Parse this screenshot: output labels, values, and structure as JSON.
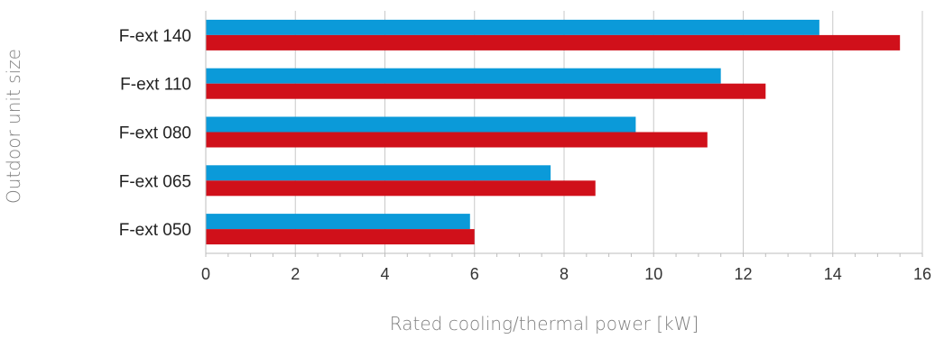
{
  "chart_data": {
    "type": "bar",
    "orientation": "horizontal",
    "categories": [
      "F-ext 140",
      "F-ext 110",
      "F-ext 080",
      "F-ext 065",
      "F-ext 050"
    ],
    "series": [
      {
        "values": [
          13.7,
          11.5,
          9.6,
          7.7,
          5.9
        ],
        "color": "#0b9ad9"
      },
      {
        "values": [
          15.5,
          12.5,
          11.2,
          8.7,
          6.0
        ],
        "color": "#d0101a"
      }
    ],
    "xlim": [
      0,
      16
    ],
    "xticks": [
      0,
      2,
      4,
      6,
      8,
      10,
      12,
      14,
      16
    ],
    "xlabel": "Rated cooling/thermal power [kW]",
    "ylabel": "Outdoor unit size",
    "grid": true,
    "legend": "none"
  }
}
